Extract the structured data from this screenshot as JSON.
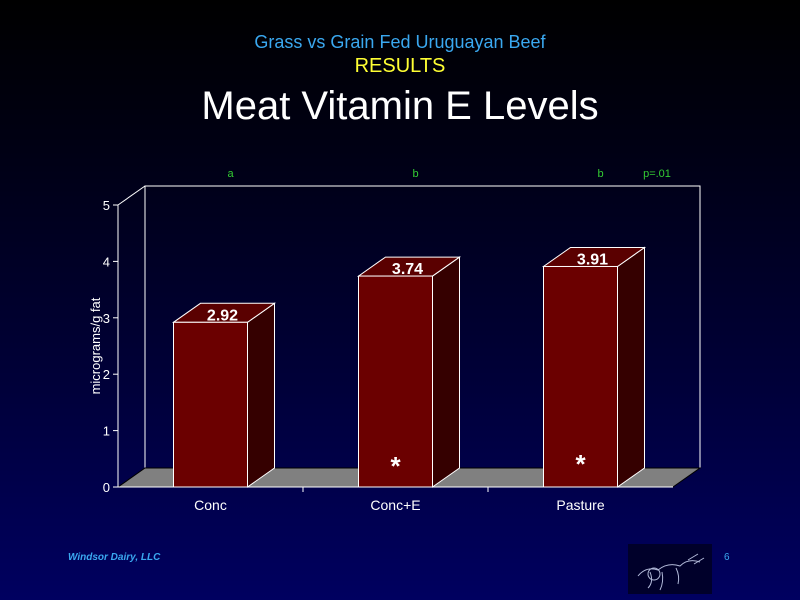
{
  "header": {
    "pre_title": "Grass vs Grain Fed Uruguayan Beef",
    "section": "RESULTS",
    "title": "Meat Vitamin E Levels"
  },
  "colors": {
    "background_top": "#000000",
    "background_bottom": "#000060",
    "pre_title": "#3aa8f0",
    "section": "#ffff33",
    "title": "#ffffff",
    "bar_front": "#6b0000",
    "bar_top": "#5a0000",
    "bar_side": "#350000",
    "floor": "#808080",
    "significance_letters": "#33cc33"
  },
  "chart_data": {
    "type": "bar",
    "categories": [
      "Conc",
      "Conc+E",
      "Pasture"
    ],
    "values": [
      2.92,
      3.74,
      3.91
    ],
    "data_labels": [
      "2.92",
      "3.74",
      "3.91"
    ],
    "ylabel": "micrograms/g fat",
    "xlabel": "",
    "ylim": [
      0,
      5
    ],
    "yticks": [
      "0",
      "1",
      "2",
      "3",
      "4",
      "5"
    ],
    "grid": false,
    "three_d": true,
    "significance_letters": [
      "a",
      "b",
      "b"
    ],
    "p_value": "p=.01",
    "asterisks": [
      "",
      "*",
      "*"
    ]
  },
  "footer": {
    "company": "Windsor Dairy, LLC",
    "page_number": "6",
    "logo_icon": "dairy-cow-sketch-logo"
  }
}
